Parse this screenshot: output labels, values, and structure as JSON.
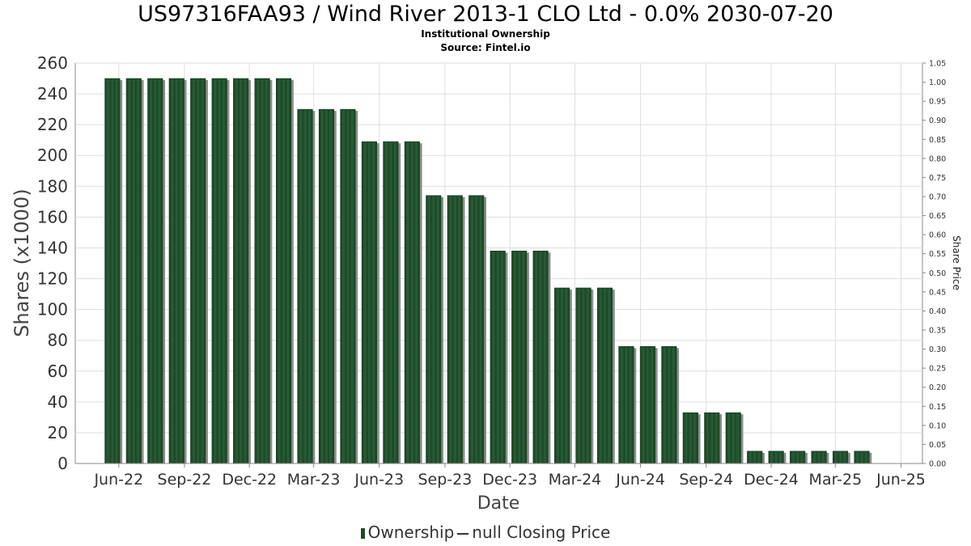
{
  "header": {
    "title": "US97316FAA93 / Wind River 2013-1 CLO Ltd - 0.0% 2030-07-20",
    "subtitle": "Institutional Ownership",
    "source": "Source: Fintel.io"
  },
  "legend": {
    "ownership_label": "Ownership",
    "price_label": "null Closing Price"
  },
  "colors": {
    "bar": "#1e4a2a",
    "bar_stripe": "#2f6b3c",
    "bar_shadow": "#8a8f8a",
    "grid": "#dddddd",
    "axis": "#888888"
  },
  "chart_data": {
    "type": "bar",
    "xlabel": "Date",
    "ylabel": "Shares (x1000)",
    "y2label": "Share Price",
    "ylim": [
      0,
      260
    ],
    "y2lim": [
      0,
      1.05
    ],
    "yticks": [
      0,
      20,
      40,
      60,
      80,
      100,
      120,
      140,
      160,
      180,
      200,
      220,
      240,
      260
    ],
    "y2ticks": [
      "0.00",
      "0.05",
      "0.10",
      "0.15",
      "0.20",
      "0.25",
      "0.30",
      "0.35",
      "0.40",
      "0.45",
      "0.50",
      "0.55",
      "0.60",
      "0.65",
      "0.70",
      "0.75",
      "0.80",
      "0.85",
      "0.90",
      "0.95",
      "1.00",
      "1.05"
    ],
    "xrange": [
      "2022-04-01",
      "2025-07-01"
    ],
    "xticks": [
      {
        "label": "Jun-22",
        "date": "2022-06-01"
      },
      {
        "label": "Sep-22",
        "date": "2022-09-01"
      },
      {
        "label": "Dec-22",
        "date": "2022-12-01"
      },
      {
        "label": "Mar-23",
        "date": "2023-03-01"
      },
      {
        "label": "Jun-23",
        "date": "2023-06-01"
      },
      {
        "label": "Sep-23",
        "date": "2023-09-01"
      },
      {
        "label": "Dec-23",
        "date": "2023-12-01"
      },
      {
        "label": "Mar-24",
        "date": "2024-03-01"
      },
      {
        "label": "Jun-24",
        "date": "2024-06-01"
      },
      {
        "label": "Sep-24",
        "date": "2024-09-01"
      },
      {
        "label": "Dec-24",
        "date": "2024-12-01"
      },
      {
        "label": "Mar-25",
        "date": "2025-03-01"
      },
      {
        "label": "Jun-25",
        "date": "2025-06-01"
      }
    ],
    "series": [
      {
        "name": "Ownership",
        "dates": [
          "2022-05-23",
          "2022-06-22",
          "2022-07-22",
          "2022-08-21",
          "2022-09-20",
          "2022-10-20",
          "2022-11-19",
          "2022-12-19",
          "2023-01-18",
          "2023-02-17",
          "2023-03-19",
          "2023-04-18",
          "2023-05-18",
          "2023-06-17",
          "2023-07-17",
          "2023-08-16",
          "2023-09-15",
          "2023-10-15",
          "2023-11-14",
          "2023-12-14",
          "2024-01-13",
          "2024-02-12",
          "2024-03-13",
          "2024-04-12",
          "2024-05-12",
          "2024-06-11",
          "2024-07-11",
          "2024-08-10",
          "2024-09-09",
          "2024-10-09",
          "2024-11-08",
          "2024-12-08",
          "2025-01-07",
          "2025-02-06",
          "2025-03-08",
          "2025-04-07"
        ],
        "values": [
          250,
          250,
          250,
          250,
          250,
          250,
          250,
          250,
          250,
          230,
          230,
          230,
          209,
          209,
          209,
          174,
          174,
          174,
          138,
          138,
          138,
          114,
          114,
          114,
          76,
          76,
          76,
          33,
          33,
          33,
          8,
          8,
          8,
          8,
          8,
          8
        ]
      },
      {
        "name": "null Closing Price",
        "values": []
      }
    ]
  }
}
